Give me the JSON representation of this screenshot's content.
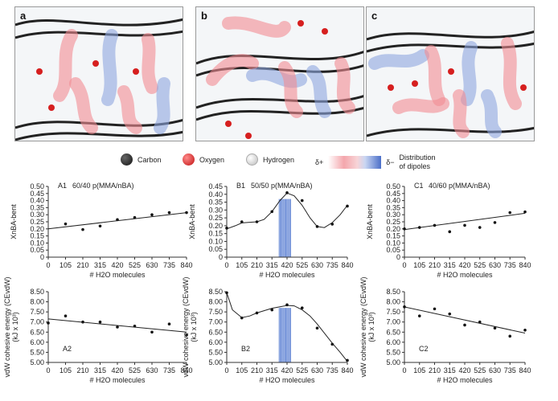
{
  "panels": [
    {
      "letter": "a"
    },
    {
      "letter": "b"
    },
    {
      "letter": "c"
    }
  ],
  "legend": {
    "carbon": "Carbon",
    "oxygen": "Oxygen",
    "hydrogen": "Hydrogen",
    "delta_plus": "δ+",
    "delta_minus": "δ−",
    "distribution_line1": "Distribution",
    "distribution_line2": "of dipoles",
    "colors": {
      "carbon": "#1a1a1a",
      "oxygen": "#d61f1f",
      "hydrogen": "#e8e8e8",
      "positive": "#f28c93",
      "negative": "#4b6fc9"
    }
  },
  "chart_data": [
    {
      "id": "A1",
      "type": "scatter",
      "label": "A1",
      "title": "60/40 p(MMA/nBA)",
      "xlabel": "# H2O molecules",
      "ylabel": "XnBA-bent",
      "xticks": [
        0,
        105,
        210,
        315,
        420,
        525,
        630,
        735,
        840
      ],
      "yticks": [
        "0",
        "0.05",
        "0.10",
        "0.15",
        "0.20",
        "0.25",
        "0.30",
        "0.35",
        "0.40",
        "0.45",
        "0.50"
      ],
      "xlim": [
        0,
        840
      ],
      "ylim": [
        0,
        0.5
      ],
      "x": [
        105,
        210,
        315,
        420,
        525,
        630,
        735,
        840
      ],
      "y": [
        0.235,
        0.195,
        0.22,
        0.265,
        0.28,
        0.3,
        0.315,
        0.315
      ],
      "fit": [
        [
          0,
          0.2
        ],
        [
          840,
          0.315
        ]
      ]
    },
    {
      "id": "B1",
      "type": "scatter",
      "label": "B1",
      "title": "50/50 p(MMA/nBA)",
      "xlabel": "# H2O molecules",
      "ylabel": "XnBA-bent",
      "xticks": [
        0,
        105,
        210,
        315,
        420,
        525,
        630,
        735,
        840
      ],
      "yticks": [
        "0",
        "0.05",
        "0.10",
        "0.15",
        "0.20",
        "0.25",
        "0.30",
        "0.35",
        "0.40",
        "0.45"
      ],
      "xlim": [
        0,
        840
      ],
      "ylim": [
        0,
        0.45
      ],
      "x": [
        0,
        105,
        210,
        315,
        420,
        525,
        630,
        735,
        840
      ],
      "y": [
        0.185,
        0.225,
        0.225,
        0.29,
        0.41,
        0.36,
        0.195,
        0.21,
        0.325
      ],
      "fit": [
        [
          0,
          0.18
        ],
        [
          60,
          0.2
        ],
        [
          105,
          0.218
        ],
        [
          160,
          0.222
        ],
        [
          210,
          0.225
        ],
        [
          260,
          0.24
        ],
        [
          315,
          0.29
        ],
        [
          370,
          0.36
        ],
        [
          420,
          0.408
        ],
        [
          470,
          0.39
        ],
        [
          525,
          0.33
        ],
        [
          580,
          0.25
        ],
        [
          630,
          0.195
        ],
        [
          680,
          0.188
        ],
        [
          735,
          0.22
        ],
        [
          790,
          0.27
        ],
        [
          840,
          0.33
        ]
      ],
      "band": [
        [
          0,
          0.37
        ],
        [
          0,
          0.37
        ]
      ],
      "band_x": [
        365,
        445
      ]
    },
    {
      "id": "C1",
      "type": "scatter",
      "label": "C1",
      "title": "40/60 p(MMA/nBA)",
      "xlabel": "# H2O molecules",
      "ylabel": "XnBA-bent",
      "xticks": [
        0,
        105,
        210,
        315,
        420,
        525,
        630,
        735,
        840
      ],
      "yticks": [
        "0",
        "0.05",
        "0.10",
        "0.15",
        "0.20",
        "0.25",
        "0.30",
        "0.35",
        "0.40",
        "0.45",
        "0.50"
      ],
      "xlim": [
        0,
        840
      ],
      "ylim": [
        0,
        0.5
      ],
      "x": [
        0,
        105,
        210,
        315,
        420,
        525,
        630,
        735,
        840
      ],
      "y": [
        0.2,
        0.21,
        0.225,
        0.18,
        0.225,
        0.21,
        0.245,
        0.315,
        0.32
      ],
      "fit": [
        [
          0,
          0.195
        ],
        [
          840,
          0.31
        ]
      ]
    },
    {
      "id": "A2",
      "type": "scatter",
      "label": "A2",
      "title": "",
      "xlabel": "# H2O molecules",
      "ylabel": "vdW cohesive energy (CEvdW)",
      "ylabel2": "(kJ x 10³)",
      "xticks": [
        0,
        105,
        210,
        315,
        420,
        525,
        630,
        735,
        840
      ],
      "yticks": [
        "5.00",
        "5.50",
        "6.00",
        "6.50",
        "7.00",
        "7.50",
        "8.00",
        "8.50"
      ],
      "xlim": [
        0,
        840
      ],
      "ylim": [
        5.0,
        8.5
      ],
      "x": [
        0,
        105,
        210,
        315,
        420,
        525,
        630,
        735,
        840
      ],
      "y": [
        6.95,
        7.3,
        7.0,
        7.0,
        6.75,
        6.8,
        6.5,
        6.9,
        6.35
      ],
      "fit": [
        [
          0,
          7.15
        ],
        [
          840,
          6.5
        ]
      ]
    },
    {
      "id": "B2",
      "type": "scatter",
      "label": "B2",
      "title": "",
      "xlabel": "# H2O molecules",
      "ylabel": "vdW cohesive energy (CEvdW)",
      "ylabel2": "(kJ x 10³)",
      "xticks": [
        0,
        105,
        210,
        315,
        420,
        525,
        630,
        735,
        840
      ],
      "yticks": [
        "5.00",
        "5.50",
        "6.00",
        "6.50",
        "7.00",
        "7.50",
        "8.00",
        "8.50"
      ],
      "xlim": [
        0,
        840
      ],
      "ylim": [
        5.0,
        8.5
      ],
      "x": [
        0,
        105,
        210,
        315,
        420,
        525,
        630,
        735,
        840
      ],
      "y": [
        8.45,
        7.2,
        7.45,
        7.6,
        7.85,
        7.7,
        6.7,
        5.9,
        5.1
      ],
      "fit": [
        [
          0,
          8.45
        ],
        [
          40,
          7.6
        ],
        [
          105,
          7.22
        ],
        [
          160,
          7.3
        ],
        [
          210,
          7.45
        ],
        [
          315,
          7.68
        ],
        [
          420,
          7.82
        ],
        [
          470,
          7.8
        ],
        [
          525,
          7.6
        ],
        [
          580,
          7.3
        ],
        [
          630,
          6.9
        ],
        [
          735,
          5.95
        ],
        [
          790,
          5.5
        ],
        [
          840,
          5.05
        ]
      ],
      "band": [
        [
          5.0,
          7.7
        ],
        [
          5.0,
          7.7
        ]
      ],
      "band_x": [
        365,
        445
      ]
    },
    {
      "id": "C2",
      "type": "scatter",
      "label": "C2",
      "title": "",
      "xlabel": "# H2O molecules",
      "ylabel": "vdW cohesive energy (CEvdW)",
      "ylabel2": "(kJ x 10³)",
      "xticks": [
        0,
        105,
        210,
        315,
        420,
        525,
        630,
        735,
        840
      ],
      "yticks": [
        "5.00",
        "5.50",
        "6.00",
        "6.50",
        "7.00",
        "7.50",
        "8.00",
        "8.50"
      ],
      "xlim": [
        0,
        840
      ],
      "ylim": [
        5.0,
        8.5
      ],
      "x": [
        0,
        105,
        210,
        315,
        420,
        525,
        630,
        735,
        840
      ],
      "y": [
        7.75,
        7.3,
        7.65,
        7.4,
        6.85,
        7.0,
        6.7,
        6.3,
        6.6
      ],
      "fit": [
        [
          0,
          7.75
        ],
        [
          840,
          6.45
        ]
      ]
    }
  ]
}
